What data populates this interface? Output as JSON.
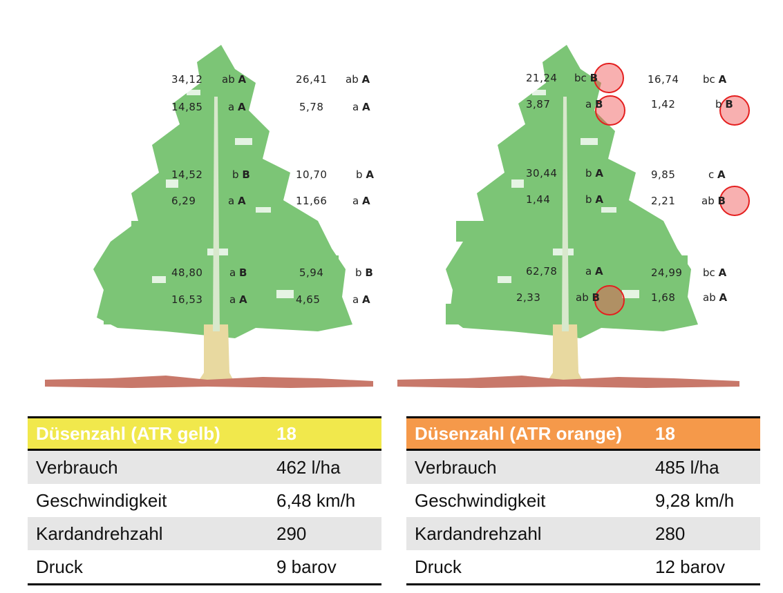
{
  "left_tree": {
    "rows": [
      {
        "v1": "34,12",
        "t1": "ab",
        "g1": "A",
        "v2": "26,41",
        "t2": "ab",
        "g2": "A"
      },
      {
        "v1": "14,85",
        "t1": "a",
        "g1": "A",
        "v2": "5,78",
        "t2": "a",
        "g2": "A"
      },
      {
        "v1": "14,52",
        "t1": "b",
        "g1": "B",
        "v2": "10,70",
        "t2": "b",
        "g2": "A"
      },
      {
        "v1": "6,29",
        "t1": "a",
        "g1": "A",
        "v2": "11,66",
        "t2": "a",
        "g2": "A"
      },
      {
        "v1": "48,80",
        "t1": "a",
        "g1": "B",
        "v2": "5,94",
        "t2": "b",
        "g2": "B"
      },
      {
        "v1": "16,53",
        "t1": "a",
        "g1": "A",
        "v2": "4,65",
        "t2": "a",
        "g2": "A"
      }
    ]
  },
  "right_tree": {
    "rows": [
      {
        "v1": "21,24",
        "t1": "bc",
        "g1": "B",
        "v2": "16,74",
        "t2": "bc",
        "g2": "A"
      },
      {
        "v1": "3,87",
        "t1": "a",
        "g1": "B",
        "v2": "1,42",
        "t2": "b",
        "g2": "B"
      },
      {
        "v1": "30,44",
        "t1": "b",
        "g1": "A",
        "v2": "9,85",
        "t2": "c",
        "g2": "A"
      },
      {
        "v1": "1,44",
        "t1": "b",
        "g1": "A",
        "v2": "2,21",
        "t2": "ab",
        "g2": "B"
      },
      {
        "v1": "62,78",
        "t1": "a",
        "g1": "A",
        "v2": "24,99",
        "t2": "bc",
        "g2": "A"
      },
      {
        "v1": "2,33",
        "t1": "ab",
        "g1": "B",
        "v2": "1,68",
        "t2": "ab",
        "g2": "A"
      }
    ]
  },
  "table_left": {
    "header": {
      "label": "Düsenzahl (ATR gelb)",
      "value": "18",
      "color": "#f1e84c"
    },
    "rows": [
      {
        "label": "Verbrauch",
        "value": "462 l/ha"
      },
      {
        "label": "Geschwindigkeit",
        "value": "6,48 km/h"
      },
      {
        "label": "Kardandrehzahl",
        "value": "290"
      },
      {
        "label": "Druck",
        "value": "9 barov"
      }
    ]
  },
  "table_right": {
    "header": {
      "label": "Düsenzahl (ATR orange)",
      "value": "18",
      "color": "#f5994a"
    },
    "rows": [
      {
        "label": "Verbrauch",
        "value": "485 l/ha"
      },
      {
        "label": "Geschwindigkeit",
        "value": "9,28 km/h"
      },
      {
        "label": "Kardandrehzahl",
        "value": "280"
      },
      {
        "label": "Druck",
        "value": "12 barov"
      }
    ]
  },
  "colors": {
    "foliage": "#7cc576",
    "trunk": "#e8d9a0",
    "ground": "#c8786a",
    "highlight": "#e41e1e"
  }
}
